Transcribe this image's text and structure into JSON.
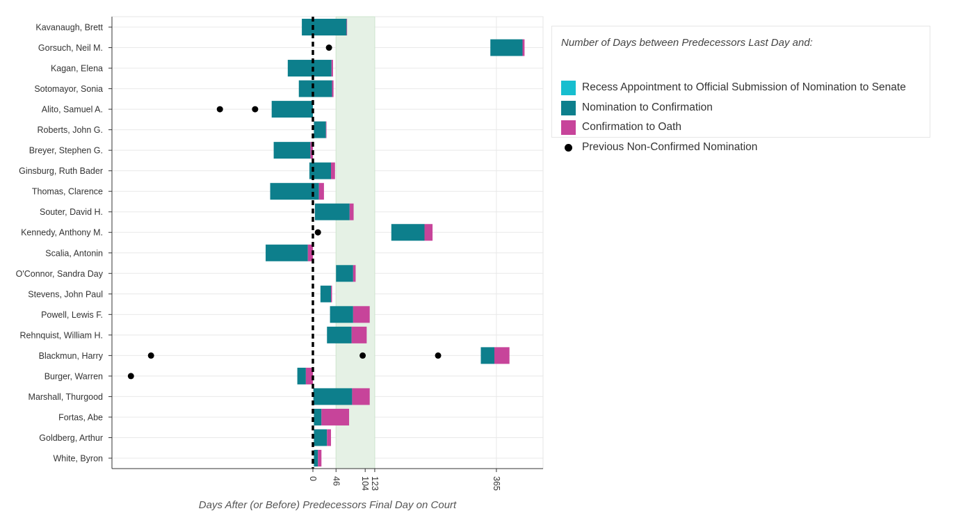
{
  "chart_data": {
    "type": "bar",
    "orientation": "horizontal-stacked",
    "xlabel": "Days After (or Before) Predecessors Final Day on Court",
    "xticks": [
      0,
      46,
      104,
      123,
      365
    ],
    "xlim": [
      -400,
      460
    ],
    "grid": true,
    "highlight_band": {
      "from": 46,
      "to": 123,
      "color": "#e5f1e5"
    },
    "reference_line": {
      "x": 0,
      "style": "dashed",
      "color": "#000000"
    },
    "legend": {
      "title": "Number of Days between Predecessors Last Day and:",
      "placement": "right",
      "items": [
        {
          "label": "Recess Appointment to Official Submission of Nomination to Senate",
          "color": "#17becf"
        },
        {
          "label": "Nomination to Confirmation",
          "color": "#0d7f8c"
        },
        {
          "label": "Confirmation to Oath",
          "color": "#c7449a"
        },
        {
          "label": "Previous Non-Confirmed Nomination",
          "color": "#000000",
          "marker": "dot"
        }
      ]
    },
    "categories": [
      "Kavanaugh, Brett",
      "Gorsuch, Neil M.",
      "Kagan, Elena",
      "Sotomayor, Sonia",
      "Alito, Samuel A.",
      "Roberts, John G.",
      "Breyer, Stephen G.",
      "Ginsburg, Ruth Bader",
      "Thomas, Clarence",
      "Souter, David H.",
      "Kennedy, Anthony M.",
      "Scalia, Antonin",
      "O'Connor, Sandra Day",
      "Stevens, John Paul",
      "Powell, Lewis F.",
      "Rehnquist, William H.",
      "Blackmun, Harry",
      "Burger, Warren",
      "Marshall, Thurgood",
      "Fortas, Abe",
      "Goldberg, Arthur",
      "White, Byron"
    ],
    "series": [
      {
        "name": "Nomination to Confirmation",
        "color": "#0d7f8c",
        "ranges": [
          [
            -22,
            67
          ],
          [
            353,
            417
          ],
          [
            -50,
            37
          ],
          [
            -28,
            38
          ],
          [
            -82,
            0
          ],
          [
            2,
            26
          ],
          [
            -78,
            -5
          ],
          [
            -7,
            36
          ],
          [
            -85,
            12
          ],
          [
            4,
            73
          ],
          [
            156,
            222
          ],
          [
            -94,
            -10
          ],
          [
            46,
            80
          ],
          [
            15,
            36
          ],
          [
            34,
            80
          ],
          [
            28,
            77
          ],
          [
            334,
            361
          ],
          [
            -31,
            -14
          ],
          [
            1,
            78
          ],
          [
            2,
            17
          ],
          [
            2,
            28
          ],
          [
            2,
            10
          ]
        ]
      },
      {
        "name": "Confirmation to Oath",
        "color": "#c7449a",
        "ranges": [
          [
            67,
            68
          ],
          [
            417,
            421
          ],
          [
            37,
            40
          ],
          [
            38,
            41
          ],
          [
            0,
            0
          ],
          [
            26,
            27
          ],
          [
            -5,
            0
          ],
          [
            36,
            44
          ],
          [
            12,
            22
          ],
          [
            73,
            81
          ],
          [
            222,
            238
          ],
          [
            -10,
            0
          ],
          [
            80,
            85
          ],
          [
            36,
            38
          ],
          [
            80,
            113
          ],
          [
            77,
            107
          ],
          [
            361,
            391
          ],
          [
            -14,
            0
          ],
          [
            78,
            113
          ],
          [
            17,
            72
          ],
          [
            28,
            36
          ],
          [
            10,
            17
          ]
        ]
      }
    ],
    "previous_nominations": [
      {
        "category": "Gorsuch, Neil M.",
        "x": [
          32
        ]
      },
      {
        "category": "Kennedy, Anthony M.",
        "x": [
          10
        ]
      },
      {
        "category": "Alito, Samuel A.",
        "x": [
          -185,
          -115
        ]
      },
      {
        "category": "Blackmun, Harry",
        "x": [
          -322,
          99,
          249
        ]
      },
      {
        "category": "Burger, Warren",
        "x": [
          -362
        ]
      }
    ]
  }
}
